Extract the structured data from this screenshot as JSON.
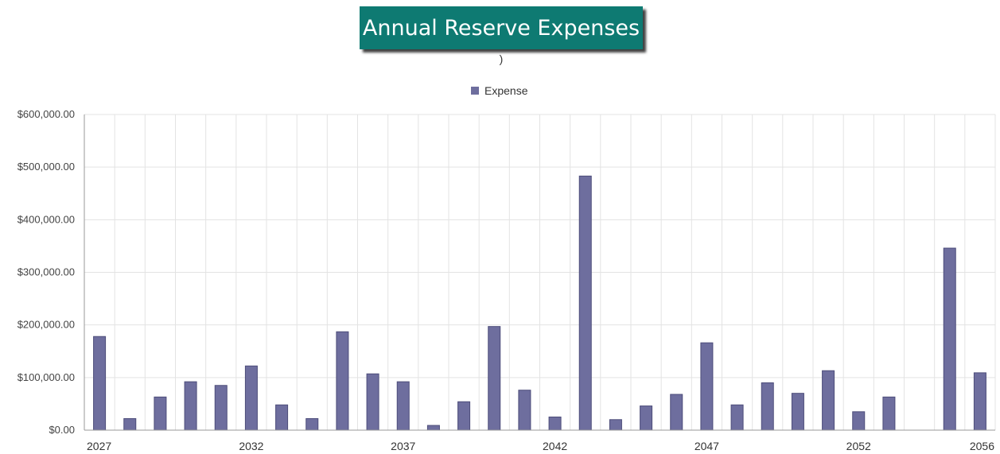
{
  "title": "Annual Reserve Expenses",
  "subtitle": ")",
  "colors": {
    "title_bg": "#0e7a72",
    "bar": "#6e6e9e",
    "bar_edge": "#4d4d7a"
  },
  "chart_data": {
    "type": "bar",
    "title": "Annual Reserve Expenses",
    "subtitle": ")",
    "legend": {
      "position": "top-center"
    },
    "grid": true,
    "categories": [
      2027,
      2028,
      2029,
      2030,
      2031,
      2032,
      2033,
      2034,
      2035,
      2036,
      2037,
      2038,
      2039,
      2040,
      2041,
      2042,
      2043,
      2044,
      2045,
      2046,
      2047,
      2048,
      2049,
      2050,
      2051,
      2052,
      2053,
      2054,
      2055,
      2056
    ],
    "series": [
      {
        "name": "Expense",
        "values": [
          178000,
          22000,
          63000,
          92000,
          85000,
          122000,
          48000,
          22000,
          187000,
          107000,
          92000,
          9000,
          54000,
          197000,
          76000,
          25000,
          483000,
          20000,
          46000,
          68000,
          166000,
          48000,
          90000,
          70000,
          113000,
          35000,
          63000,
          0,
          346000,
          109000
        ]
      }
    ],
    "x_tick_labels": [
      "2027",
      "2032",
      "2037",
      "2042",
      "2047",
      "2052",
      "2056"
    ],
    "y_tick_labels": [
      "$600,000.00",
      "$500,000.00",
      "$400,000.00",
      "$300,000.00",
      "$200,000.00",
      "$100,000.00",
      "$0.00"
    ],
    "y_ticks": [
      600000,
      500000,
      400000,
      300000,
      200000,
      100000,
      0
    ],
    "ylim": [
      0,
      600000
    ],
    "xlabel": "",
    "ylabel": ""
  }
}
